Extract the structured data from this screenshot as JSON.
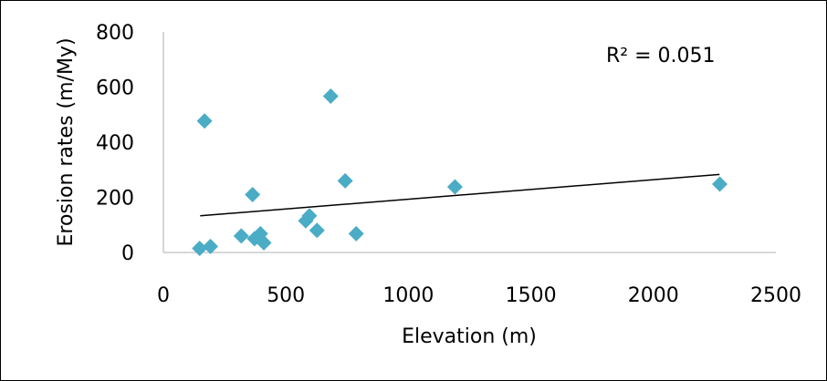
{
  "chart_data": {
    "type": "scatter",
    "title": "",
    "xlabel": "Elevation (m)",
    "ylabel": "Erosion rates (m/My)",
    "xlim": [
      0,
      2500
    ],
    "ylim": [
      0,
      800
    ],
    "xticks": [
      "0",
      "500",
      "1000",
      "1500",
      "2000",
      "2500"
    ],
    "yticks": [
      "0",
      "200",
      "400",
      "600",
      "800"
    ],
    "grid": false,
    "legend": "none",
    "marker": "diamond",
    "marker_color": "#4BACC6",
    "trendline": {
      "type": "linear",
      "x": [
        150,
        2270
      ],
      "y": [
        133,
        283
      ],
      "color": "#000000"
    },
    "annotation": "R² = 0.051",
    "series": [
      {
        "points": [
          [
            148,
            15
          ],
          [
            168,
            477
          ],
          [
            192,
            22
          ],
          [
            318,
            60
          ],
          [
            364,
            210
          ],
          [
            372,
            50
          ],
          [
            396,
            68
          ],
          [
            410,
            35
          ],
          [
            581,
            115
          ],
          [
            596,
            133
          ],
          [
            627,
            80
          ],
          [
            683,
            567
          ],
          [
            742,
            260
          ],
          [
            787,
            68
          ],
          [
            1190,
            238
          ],
          [
            2271,
            248
          ]
        ]
      }
    ]
  }
}
